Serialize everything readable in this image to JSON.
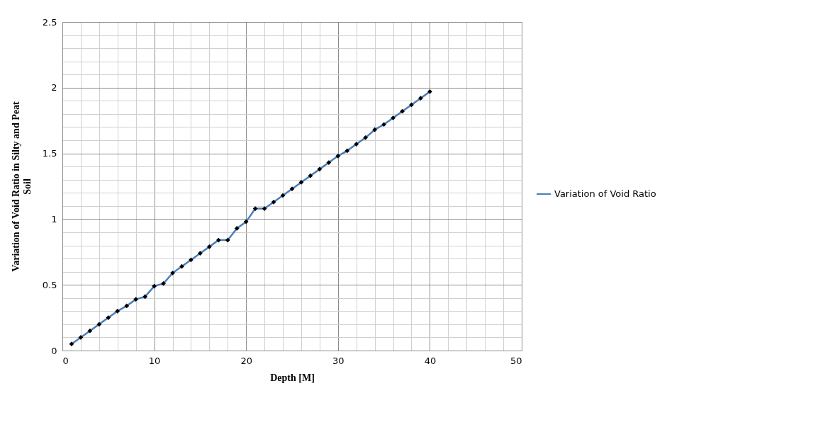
{
  "chart_data": {
    "type": "line",
    "xlabel": "Depth [M]",
    "ylabel": "Variation of Void Ratio in Silty and Peat Soil",
    "x": [
      1,
      2,
      3,
      4,
      5,
      6,
      7,
      8,
      9,
      10,
      11,
      12,
      13,
      14,
      15,
      16,
      17,
      18,
      19,
      20,
      21,
      22,
      23,
      24,
      25,
      26,
      27,
      28,
      29,
      30,
      31,
      32,
      33,
      34,
      35,
      36,
      37,
      38,
      39,
      40
    ],
    "series": [
      {
        "name": "Variation of Void Ratio",
        "color": "#4a7ebb",
        "values": [
          0.05,
          0.1,
          0.15,
          0.2,
          0.25,
          0.3,
          0.34,
          0.39,
          0.41,
          0.49,
          0.51,
          0.59,
          0.64,
          0.69,
          0.74,
          0.79,
          0.84,
          0.84,
          0.93,
          0.98,
          1.08,
          1.08,
          1.13,
          1.18,
          1.23,
          1.28,
          1.33,
          1.38,
          1.43,
          1.48,
          1.52,
          1.57,
          1.62,
          1.68,
          1.72,
          1.77,
          1.82,
          1.87,
          1.92,
          1.97
        ]
      }
    ],
    "xlim": [
      0,
      50
    ],
    "xticks": [
      0,
      10,
      20,
      30,
      40,
      50
    ],
    "ylim": [
      0,
      2.5
    ],
    "yticks": [
      0,
      0.5,
      1,
      1.5,
      2,
      2.5
    ],
    "grid": true,
    "legend": "right",
    "marker": "diamond",
    "line_style": "solid"
  }
}
